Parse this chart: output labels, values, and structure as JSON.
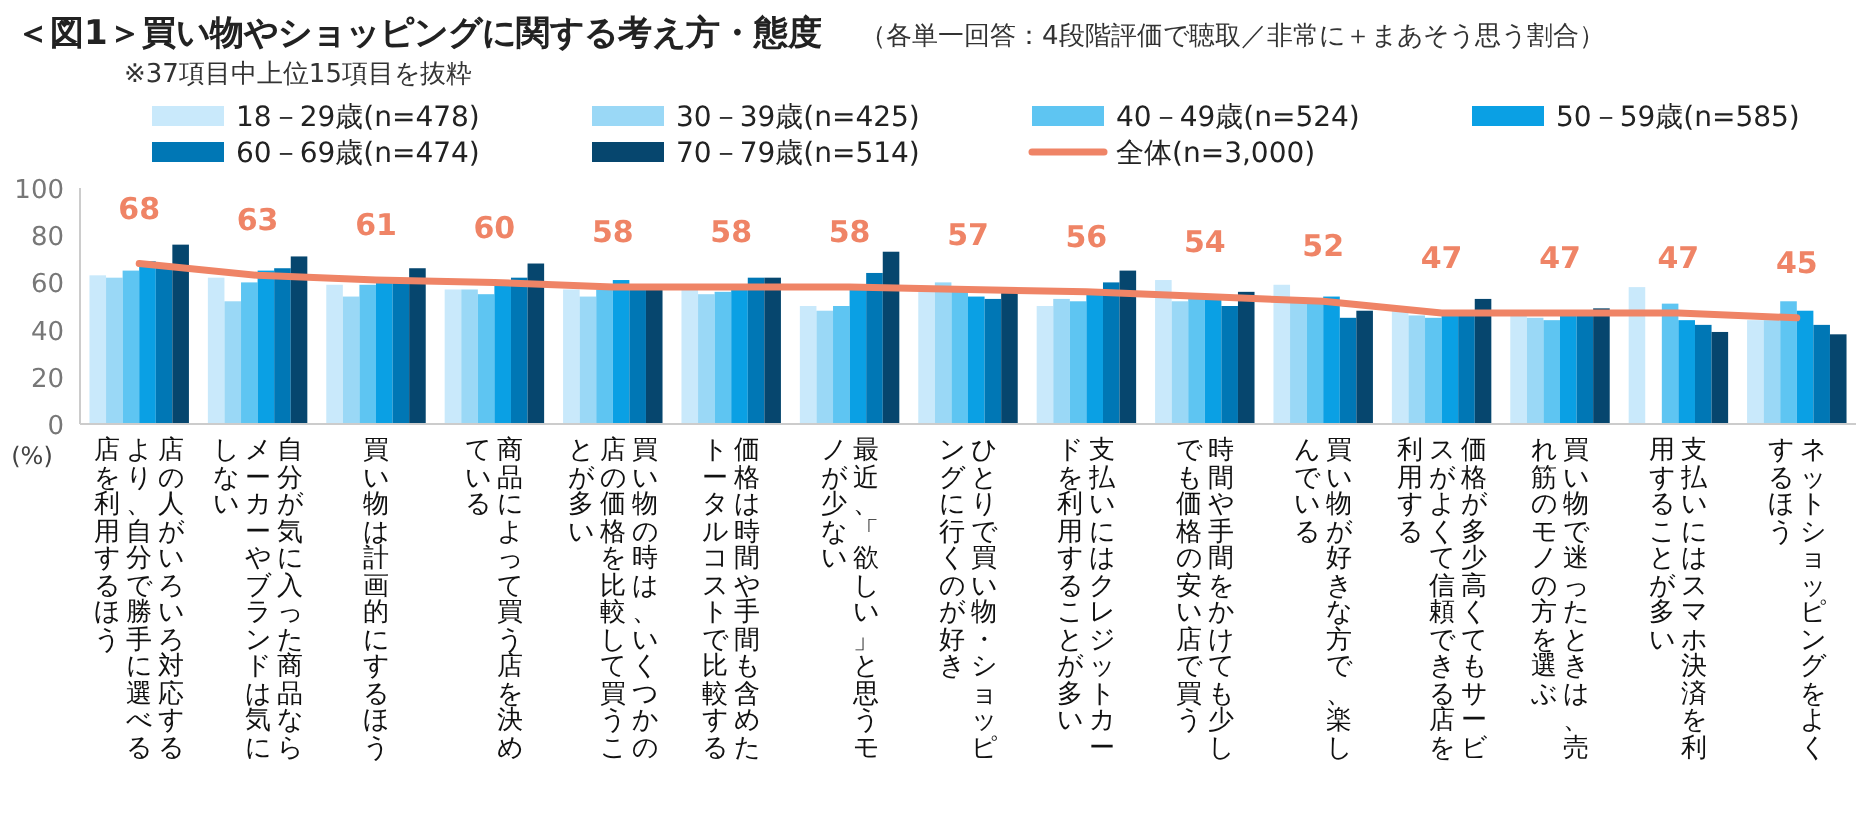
{
  "chart_data": {
    "type": "bar",
    "title": "＜図1＞買い物やショッピングに関する考え方・態度",
    "subtitle": "（各単一回答：4段階評価で聴取／非常に＋まあそう思う割合）",
    "annotations": [
      "※37項目中上位15項目を抜粋"
    ],
    "ylabel": "(%)",
    "categories": [
      "店の人がいろいろ対応するより、自分で勝手に選べる店を利用するほう",
      "自分が気に入った商品ならメーカーやブランドは気にしない",
      "買い物は計画的にするほう",
      "商品によって買う店を決めている",
      "買い物の時は、いくつかの店の価格を比較して買うことが多い",
      "価格は時間や手間も含めたトータルコストで比較する",
      "最近、「欲しい」と思うモノが少ない",
      "ひとりで買い物・ショッピングに行くのが好き",
      "支払いにはクレジットカードを利用することが多い",
      "時間や手間をかけても少しでも価格の安い店で買う",
      "買い物が好きな方で、楽しんでいる",
      "価格が多少高くてもサービスがよくて信頼できる店を利用する",
      "買い物で迷ったときは、売れ筋のモノの方を選ぶ",
      "支払いにはスマホ決済を利用することが多い",
      "ネットショッピングをよくするほう"
    ],
    "series": [
      {
        "name": "18－29歳(n=478)",
        "color": "#c9e9fb",
        "values": [
          63,
          62,
          59,
          57,
          57,
          57,
          50,
          58,
          50,
          61,
          59,
          48,
          46,
          58,
          44
        ]
      },
      {
        "name": "30－39歳(n=425)",
        "color": "#9ad8f6",
        "values": [
          62,
          52,
          54,
          57,
          54,
          55,
          48,
          60,
          53,
          52,
          53,
          46,
          45,
          null,
          44
        ]
      },
      {
        "name": "40－49歳(n=524)",
        "color": "#5ec5f2",
        "values": [
          65,
          60,
          59,
          55,
          57,
          56,
          50,
          56,
          52,
          54,
          53,
          45,
          44,
          51,
          52
        ]
      },
      {
        "name": "50－59歳(n=585)",
        "color": "#0aa0e4",
        "values": [
          69,
          65,
          60,
          59,
          61,
          57,
          57,
          54,
          57,
          54,
          54,
          47,
          48,
          44,
          48
        ]
      },
      {
        "name": "60－69歳(n=474)",
        "color": "#0077b5",
        "values": [
          67,
          66,
          60,
          62,
          58,
          62,
          64,
          53,
          60,
          50,
          45,
          47,
          48,
          42,
          42
        ]
      },
      {
        "name": "70－79歳(n=514)",
        "color": "#06466e",
        "values": [
          76,
          71,
          66,
          68,
          58,
          62,
          73,
          56,
          65,
          56,
          48,
          53,
          49,
          39,
          38
        ]
      },
      {
        "name": "全体(n=3,000)",
        "type": "line",
        "color": "#ef8466",
        "data_labels": true,
        "values": [
          68,
          63,
          61,
          60,
          58,
          58,
          58,
          57,
          56,
          54,
          52,
          47,
          47,
          47,
          45
        ]
      }
    ],
    "ylim": [
      0,
      100
    ],
    "yticks": [
      0,
      20,
      40,
      60,
      80,
      100
    ],
    "legend": "top",
    "grid": false
  }
}
